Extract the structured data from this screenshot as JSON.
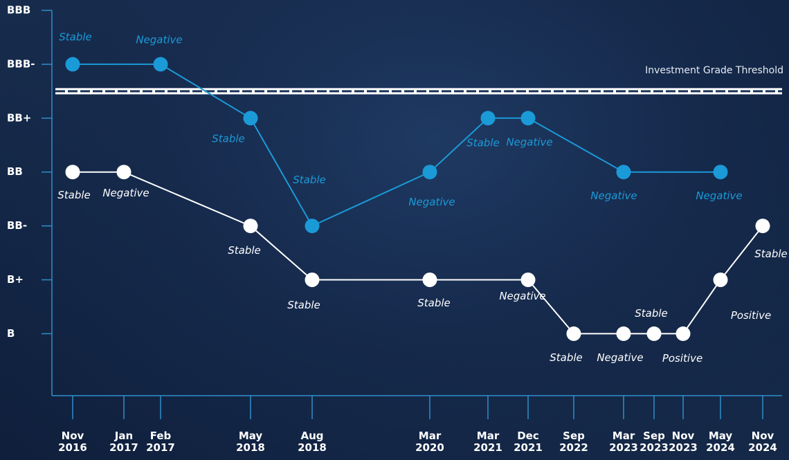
{
  "chart_data": {
    "type": "line",
    "categories": [
      "Nov 2016",
      "Jan 2017",
      "Feb 2017",
      "May 2018",
      "Aug 2018",
      "Mar 2020",
      "Mar 2021",
      "Dec 2021",
      "Sep 2022",
      "Mar 2023",
      "Sep 2023",
      "Nov 2023",
      "May 2024",
      "Nov 2024"
    ],
    "ylim": [
      -0.15,
      7
    ],
    "yticks": [
      {
        "value": 1,
        "label": "B"
      },
      {
        "value": 2,
        "label": "B+"
      },
      {
        "value": 3,
        "label": "BB-"
      },
      {
        "value": 4,
        "label": "BB"
      },
      {
        "value": 5,
        "label": "BB+"
      },
      {
        "value": 6,
        "label": "BBB-"
      },
      {
        "value": 7,
        "label": "BBB"
      }
    ],
    "threshold": {
      "value": 5.5,
      "label": "Investment Grade Threshold"
    },
    "series": [
      {
        "color": "#1b9ad8",
        "x": [
          "Nov 2016",
          "Feb 2017",
          "May 2018",
          "Aug 2018",
          "Mar 2020",
          "Mar 2021",
          "Dec 2021",
          "Mar 2023",
          "May 2024"
        ],
        "values": [
          6,
          6,
          5,
          3,
          4,
          5,
          5,
          4,
          4
        ],
        "outlooks": [
          "Stable",
          "Negative",
          "Stable",
          "Stable",
          "Negative",
          "Stable",
          "Negative",
          "Negative",
          "Negative"
        ]
      },
      {
        "color": "#ffffff",
        "x": [
          "Nov 2016",
          "Jan 2017",
          "May 2018",
          "Aug 2018",
          "Mar 2020",
          "Dec 2021",
          "Sep 2022",
          "Mar 2023",
          "Sep 2023",
          "Nov 2023",
          "May 2024",
          "Nov 2024"
        ],
        "values": [
          4,
          4,
          3,
          2,
          2,
          2,
          1,
          1,
          1,
          1,
          2,
          3
        ],
        "outlooks": [
          "Stable",
          "Negative",
          "Stable",
          "Stable",
          "Stable",
          "Negative",
          "Stable",
          "Negative",
          "Stable",
          "Positive",
          "Positive",
          "Stable"
        ]
      }
    ]
  }
}
